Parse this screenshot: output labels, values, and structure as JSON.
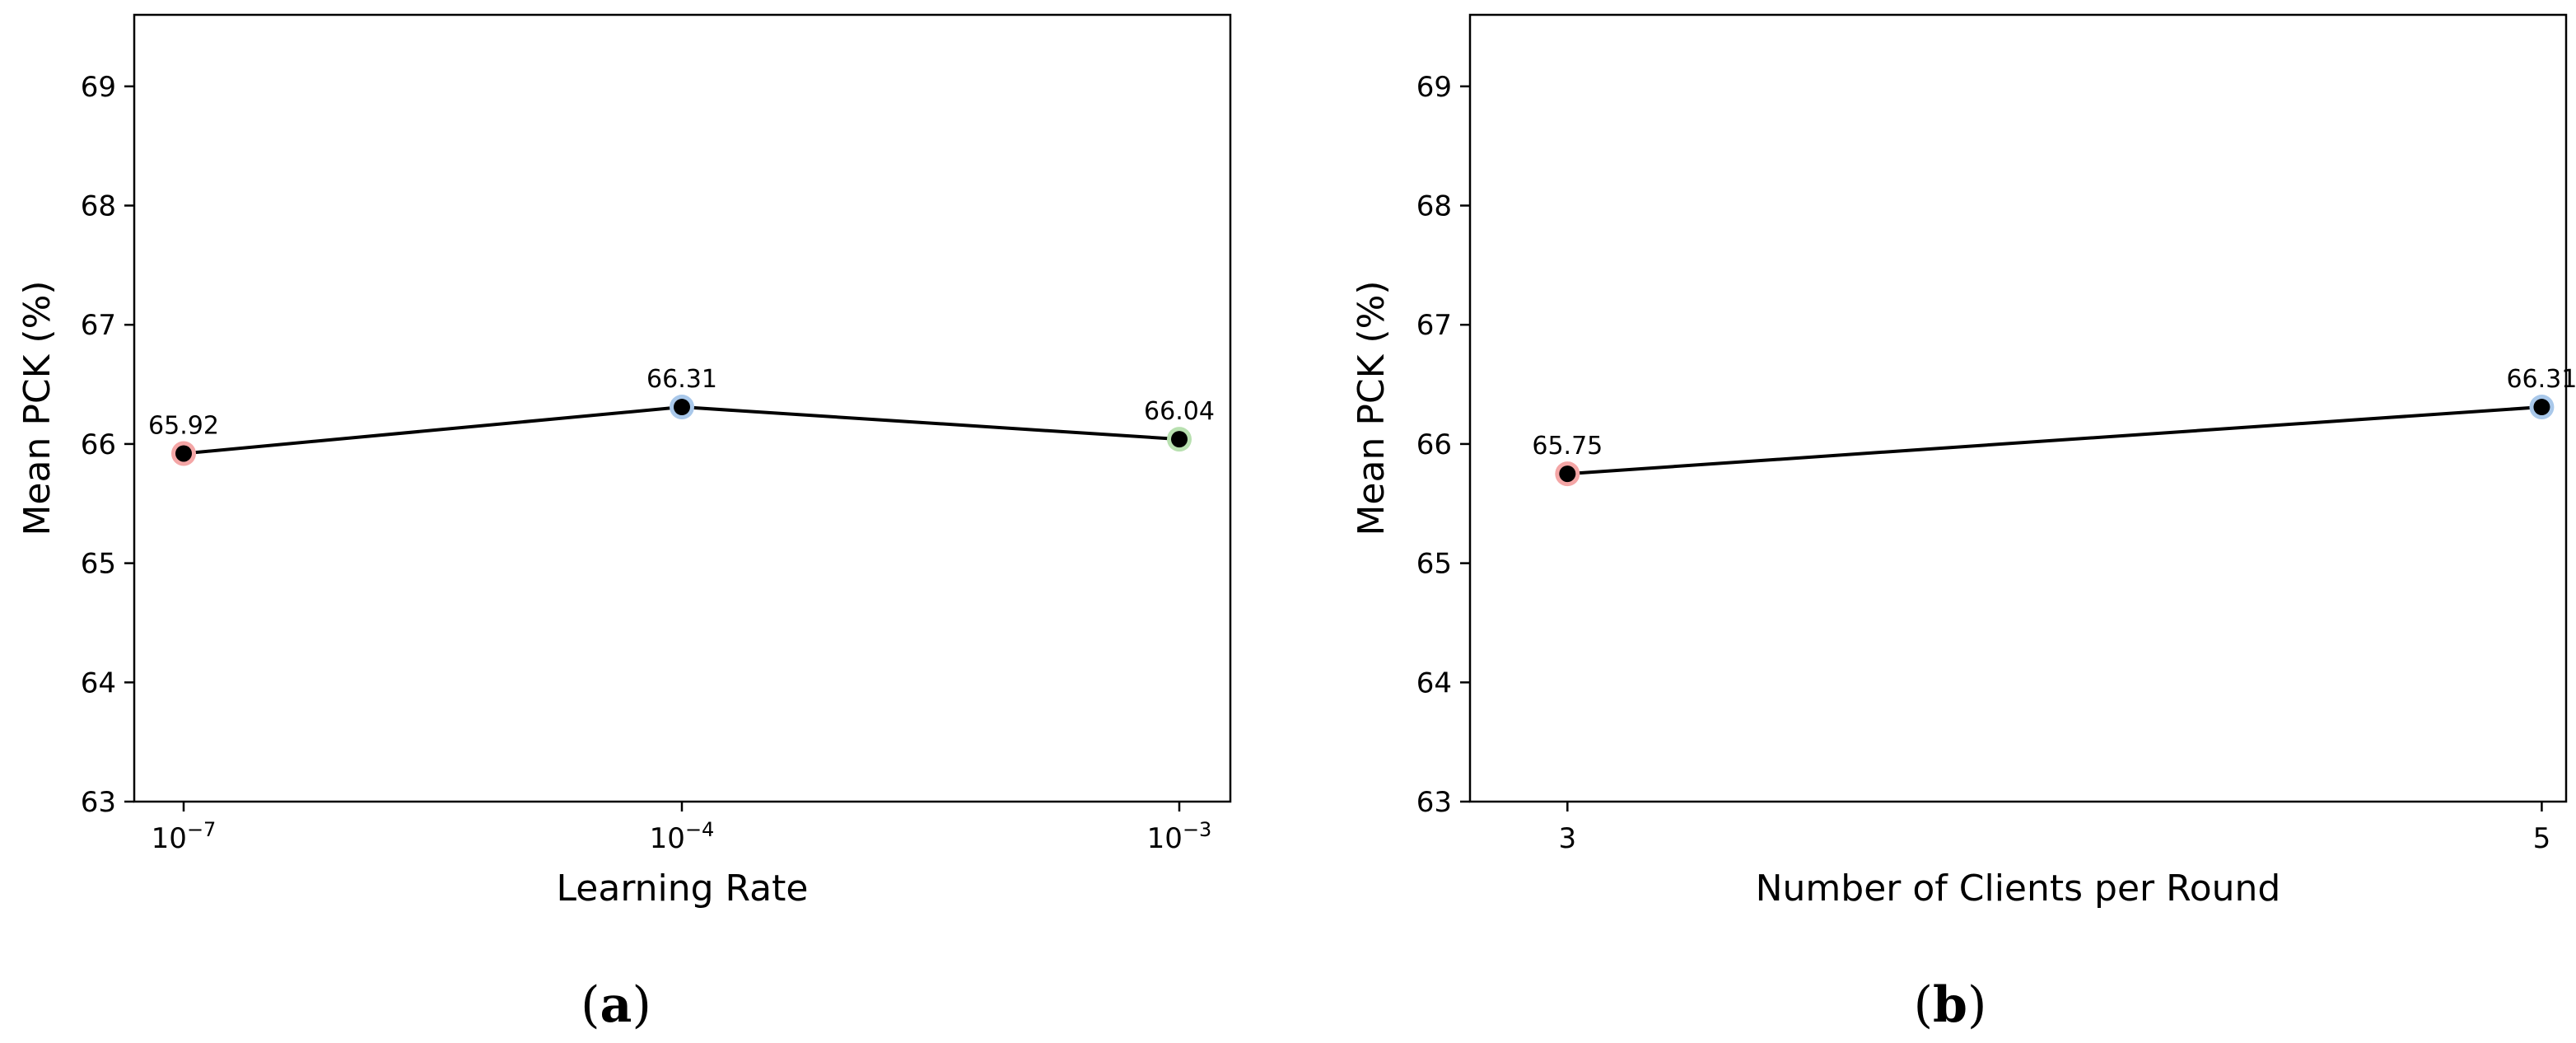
{
  "chart_data": [
    {
      "type": "line",
      "panel_label_prefix": "(",
      "panel_label_letter": "a",
      "panel_label_suffix": ")",
      "xlabel": "Learning Rate",
      "ylabel": "Mean PCK (%)",
      "ylim": [
        63,
        69.6
      ],
      "yticks": [
        "63",
        "64",
        "65",
        "66",
        "67",
        "68",
        "69"
      ],
      "x_scale": "categorical",
      "categories": [
        {
          "base": "10",
          "exp": "−7"
        },
        {
          "base": "10",
          "exp": "−4"
        },
        {
          "base": "10",
          "exp": "−3"
        }
      ],
      "series": [
        {
          "values": [
            65.92,
            66.31,
            66.04
          ],
          "labels": [
            "65.92",
            "66.31",
            "66.04"
          ],
          "line_color": "#000000",
          "marker_color": "#000000",
          "halo_colors": [
            "#f4a6a6",
            "#a9c8ea",
            "#b8e0b0"
          ]
        }
      ],
      "grid": false,
      "legend": "none"
    },
    {
      "type": "line",
      "panel_label_prefix": "(",
      "panel_label_letter": "b",
      "panel_label_suffix": ")",
      "xlabel": "Number of Clients per Round",
      "ylabel": "Mean PCK (%)",
      "ylim": [
        63,
        69.6
      ],
      "yticks": [
        "63",
        "64",
        "65",
        "66",
        "67",
        "68",
        "69"
      ],
      "x_scale": "linear",
      "xlim": [
        2.8,
        5.05
      ],
      "xticks": [
        "3",
        "5"
      ],
      "x": [
        3,
        5
      ],
      "series": [
        {
          "values": [
            65.75,
            66.31
          ],
          "labels": [
            "65.75",
            "66.31"
          ],
          "line_color": "#000000",
          "marker_color": "#000000",
          "halo_colors": [
            "#f4a6a6",
            "#a9c8ea"
          ]
        }
      ],
      "grid": false,
      "legend": "none"
    }
  ]
}
